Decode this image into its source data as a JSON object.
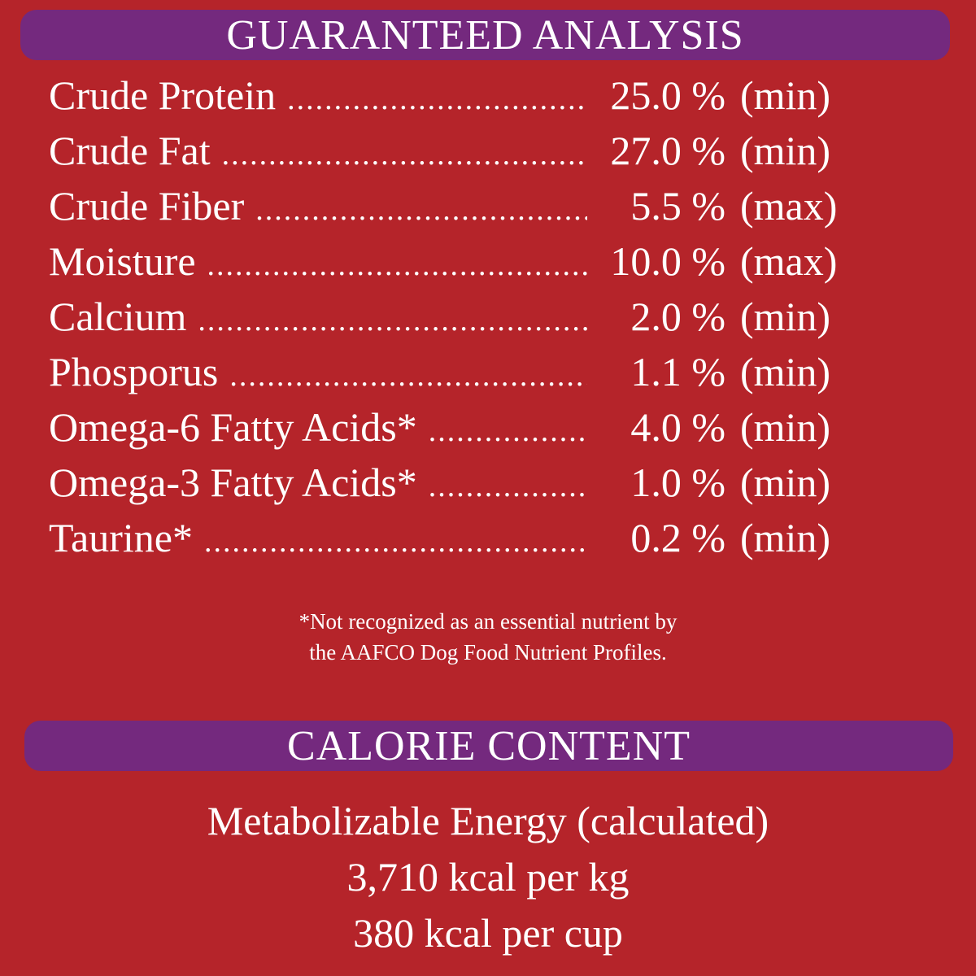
{
  "guaranteed_analysis": {
    "title": "GUARANTEED ANALYSIS",
    "rows": [
      {
        "name": "Crude Protein",
        "value": "25.0 %",
        "qualifier": "(min)"
      },
      {
        "name": "Crude Fat",
        "value": "27.0 %",
        "qualifier": "(min)"
      },
      {
        "name": "Crude Fiber",
        "value": "5.5 %",
        "qualifier": "(max)"
      },
      {
        "name": "Moisture",
        "value": "10.0 %",
        "qualifier": "(max)"
      },
      {
        "name": "Calcium",
        "value": "2.0 %",
        "qualifier": "(min)"
      },
      {
        "name": "Phosporus",
        "value": "1.1 %",
        "qualifier": "(min)"
      },
      {
        "name": "Omega-6 Fatty Acids*",
        "value": "4.0 %",
        "qualifier": "(min)"
      },
      {
        "name": "Omega-3 Fatty Acids*",
        "value": "1.0 %",
        "qualifier": "(min)"
      },
      {
        "name": "Taurine*",
        "value": "0.2 %",
        "qualifier": "(min)"
      }
    ],
    "footnote_line1": "*Not recognized as an essential nutrient by",
    "footnote_line2": "the AAFCO Dog Food Nutrient Profiles."
  },
  "calorie_content": {
    "title": "CALORIE CONTENT",
    "line1": "Metabolizable Energy (calculated)",
    "line2": "3,710 kcal per kg",
    "line3": "380 kcal per cup"
  },
  "colors": {
    "background": "#b5242a",
    "header_bar": "#74297e",
    "text": "#ffffff"
  }
}
